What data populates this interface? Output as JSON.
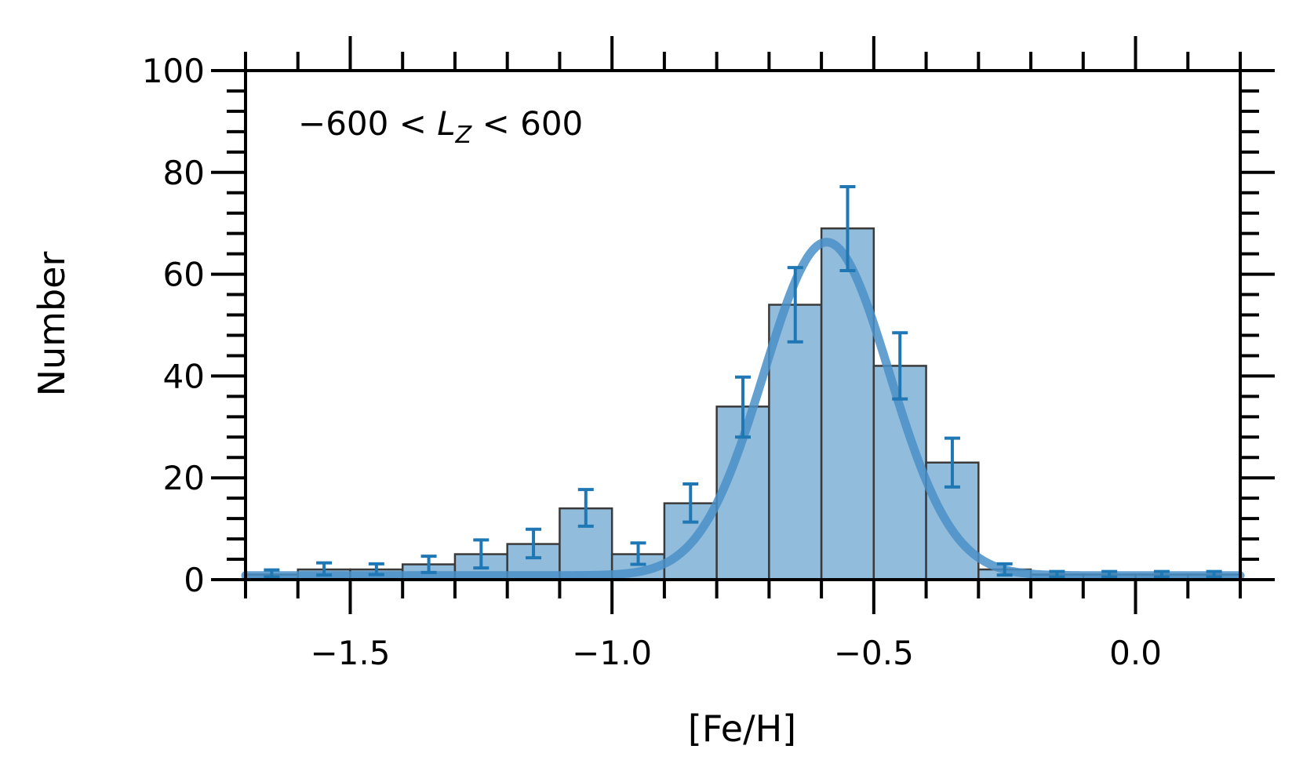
{
  "chart_data": {
    "type": "bar",
    "xlabel": "[Fe/H]",
    "ylabel": "Number",
    "annotation": {
      "prefix": "−600 < ",
      "var_main": "L",
      "var_sub": "Z",
      "suffix": " < 600"
    },
    "xlim": [
      -1.7,
      0.2
    ],
    "ylim": [
      0,
      100
    ],
    "x_ticks": [
      -1.5,
      -1.0,
      -0.5,
      0.0
    ],
    "x_tick_labels": [
      "−1.5",
      "−1.0",
      "−0.5",
      "0.0"
    ],
    "y_ticks": [
      0,
      20,
      40,
      60,
      80,
      100
    ],
    "y_tick_labels": [
      "0",
      "20",
      "40",
      "60",
      "80",
      "100"
    ],
    "bin_edges": [
      -1.7,
      -1.6,
      -1.5,
      -1.4,
      -1.3,
      -1.2,
      -1.1,
      -1.0,
      -0.9,
      -0.8,
      -0.7,
      -0.6,
      -0.5,
      -0.4,
      -0.3,
      -0.2,
      -0.1,
      0.0,
      0.1,
      0.2
    ],
    "bin_centers": [
      -1.65,
      -1.55,
      -1.45,
      -1.35,
      -1.25,
      -1.15,
      -1.05,
      -0.95,
      -0.85,
      -0.75,
      -0.65,
      -0.55,
      -0.45,
      -0.35,
      -0.25,
      -0.15,
      -0.05,
      0.05,
      0.15
    ],
    "counts": [
      1,
      2,
      2,
      3,
      5,
      7,
      14,
      5,
      15,
      34,
      54,
      69,
      42,
      23,
      2,
      1,
      1,
      1,
      1
    ],
    "error_bars": [
      {
        "low": 0.5,
        "high": 1.9
      },
      {
        "low": 0.9,
        "high": 3.3
      },
      {
        "low": 1.0,
        "high": 3.1
      },
      {
        "low": 1.4,
        "high": 4.6
      },
      {
        "low": 2.3,
        "high": 7.8
      },
      {
        "low": 4.3,
        "high": 9.9
      },
      {
        "low": 10.5,
        "high": 17.7
      },
      {
        "low": 3.0,
        "high": 7.2
      },
      {
        "low": 11.3,
        "high": 18.8
      },
      {
        "low": 28.0,
        "high": 39.8
      },
      {
        "low": 46.7,
        "high": 61.3
      },
      {
        "low": 60.7,
        "high": 77.2
      },
      {
        "low": 35.5,
        "high": 48.5
      },
      {
        "low": 18.2,
        "high": 27.8
      },
      {
        "low": 0.9,
        "high": 3.1
      },
      {
        "low": 0.5,
        "high": 1.6
      },
      {
        "low": 0.5,
        "high": 1.6
      },
      {
        "low": 0.5,
        "high": 1.6
      },
      {
        "low": 0.5,
        "high": 1.6
      }
    ],
    "gaussian_fit": {
      "baseline": 0.8,
      "amplitude": 65.5,
      "mean": -0.59,
      "sigma": 0.12
    },
    "grid": false,
    "colors": {
      "bar_fill": "#92bcdc",
      "bar_edge": "#3a3a3a",
      "error_bar": "#1f77b4",
      "fit_line": "#4a90c8"
    }
  }
}
